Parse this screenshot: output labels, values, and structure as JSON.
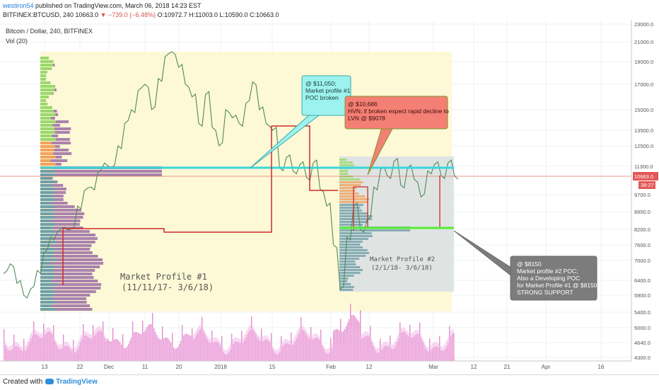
{
  "header": {
    "line1_user": "westiron54",
    "line1_rest": " published on TradingView.com, March 06, 2018 14:23 EST",
    "symbol": "BITFINEX:BTCUSD, 240",
    "last": "10663.0",
    "change": "▼ −739.0 (−6.48%)",
    "ohlc": "O:10972.7 H:11003.0 L:10590.0 C:10663.0"
  },
  "legend": {
    "title": "Bitcoin / Dollar, 240, BITFINEX",
    "vol": "Vol (20)"
  },
  "footer": {
    "created": "Created with",
    "brand": "TradingView"
  },
  "colors": {
    "profile1_bg": "#fdf8d6",
    "profile2_bg": "#d9e1e4",
    "poc": "#39d6dc",
    "dev_poc": "#cc2b2b",
    "poc2": "#55ee33",
    "volume": "#e079c6",
    "price_line": "#e35757",
    "price_tag": "#e35757"
  },
  "chart_data": {
    "type": "line",
    "title": "Bitcoin / Dollar, 240, BITFINEX",
    "x_tick_labels": [
      "13",
      "22",
      "Dec",
      "11",
      "20",
      "2018",
      "15",
      "Feb",
      "12",
      "Mar",
      "12",
      "21",
      "Apr",
      "16"
    ],
    "y_tick_labels": [
      "4300.0",
      "4640.0",
      "5000.0",
      "5400.0",
      "5900.0",
      "6400.0",
      "7000.0",
      "7600.0",
      "8200.0",
      "8950.0",
      "9700.0",
      "10663.0",
      "11300.0",
      "12500.0",
      "13500.0",
      "15000.0",
      "17000.0",
      "19000.0",
      "21000.0",
      "23000.0"
    ],
    "current_price": 10663.0,
    "countdown": "38:27",
    "series": [
      {
        "values": [
          6600,
          6900,
          6300,
          5900,
          6100,
          6700,
          7300,
          7900,
          8100,
          8300,
          8200,
          9200,
          9900,
          10100,
          10900,
          11500,
          11200,
          12500,
          14000,
          15000,
          16500,
          17000,
          15000,
          17500,
          19500,
          20000,
          18500,
          17000,
          16000,
          14000,
          16200,
          13700,
          12500,
          15000,
          14400,
          14000,
          15500,
          17200,
          15000,
          14000,
          13500,
          11200,
          11800,
          11000,
          11400,
          10600,
          11500,
          10000,
          9200,
          7600,
          6100,
          7900,
          9200,
          8200,
          8600,
          10100,
          11100,
          10700,
          11600,
          10200,
          11200,
          10500,
          9600,
          11000,
          11400,
          10700,
          11500,
          10663
        ]
      }
    ],
    "volume_series": {
      "name": "Vol (20)"
    },
    "annotations": [
      {
        "text": [
          "@ $11,050;",
          "Market profile #1",
          "POC broken"
        ]
      },
      {
        "text": [
          "@ $10,686",
          "HVN; if broken expect rapid decline to",
          "LVN @ $9078"
        ]
      },
      {
        "text": [
          "@ $8150",
          "Market profile #2 POC;",
          "Also a Developing POC",
          "for Market Profile #1 @ $8150",
          "STRONG SUPPORT"
        ]
      },
      {
        "text": [
          "Market Profile #1",
          "(11/11/17- 3/6/18)"
        ]
      },
      {
        "text": [
          "Market Profile #2",
          "(2/1/18- 3/6/18)"
        ]
      }
    ]
  }
}
